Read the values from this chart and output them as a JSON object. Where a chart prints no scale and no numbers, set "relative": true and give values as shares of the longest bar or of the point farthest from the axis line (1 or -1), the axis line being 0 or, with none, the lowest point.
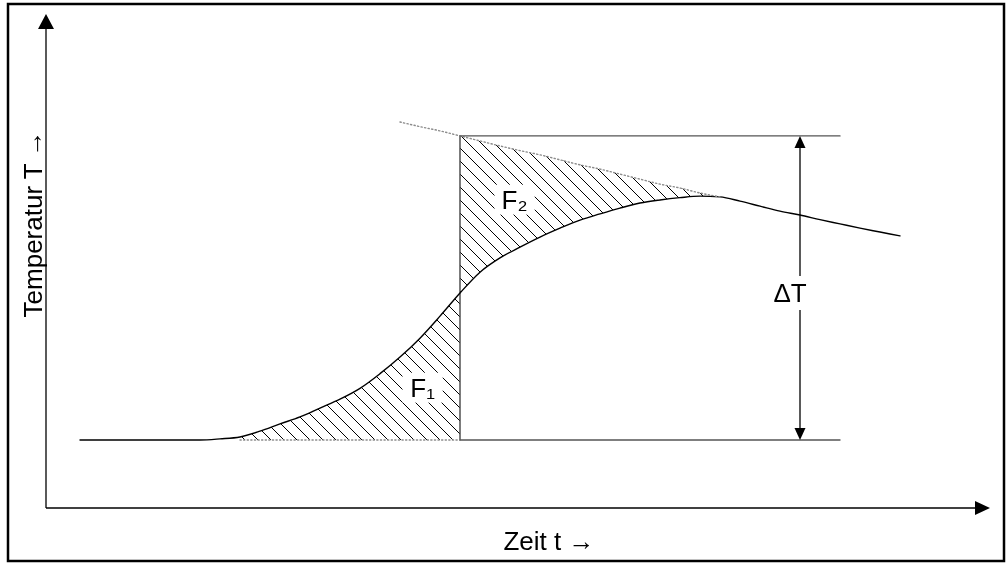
{
  "chart_data": {
    "type": "line",
    "relative": true,
    "xlabel": "Zeit t →",
    "ylabel": "Temperatur T →",
    "annotations": [
      "F₁",
      "F₂",
      "ΔT"
    ],
    "categories": [
      null,
      null,
      null,
      null,
      null,
      null,
      null,
      null,
      null,
      null,
      null,
      null,
      null,
      null,
      null,
      null,
      null,
      null,
      null,
      null,
      null,
      null,
      null,
      null,
      null,
      null,
      null,
      null,
      null,
      null,
      null,
      null,
      null,
      null,
      null,
      null,
      null,
      null,
      null,
      null,
      null,
      null
    ],
    "series": [
      {
        "color": "#000000",
        "line_style": "solid",
        "values": [
          0.176,
          0.176,
          0.176,
          0.176,
          0.176,
          0.176,
          0.176,
          0.179,
          0.184,
          0.199,
          0.218,
          0.236,
          0.259,
          0.282,
          0.31,
          0.348,
          0.391,
          0.44,
          0.497,
          0.557,
          0.611,
          0.648,
          0.676,
          0.702,
          0.725,
          0.746,
          0.762,
          0.777,
          0.79,
          0.798,
          0.804,
          0.808,
          0.806,
          0.795,
          0.782,
          0.769,
          0.759,
          0.747,
          0.736,
          0.725,
          0.715,
          0.705
        ]
      },
      {
        "color": "#8c8c8c",
        "line_style": "dotted",
        "values": [
          null,
          null,
          null,
          null,
          null,
          null,
          null,
          null,
          0.176,
          0.176,
          0.176,
          0.176,
          0.176,
          0.176,
          0.176,
          0.176,
          0.176,
          0.176,
          0.176,
          0.176,
          null,
          null,
          null,
          null,
          null,
          null,
          null,
          null,
          null,
          null,
          null,
          null,
          null,
          null,
          null,
          null,
          null,
          null,
          null,
          null,
          null,
          null
        ],
        "lower": [
          null,
          null,
          null,
          null,
          null,
          null,
          null,
          null,
          0.176,
          0.176,
          0.176,
          0.176,
          0.176,
          0.176,
          0.176,
          0.176,
          0.176,
          0.176,
          0.176,
          0.176,
          null,
          null,
          null,
          null,
          null,
          null,
          null,
          null,
          null,
          null,
          null,
          null,
          null,
          null,
          null,
          null,
          null,
          null,
          null,
          null,
          null,
          null
        ],
        "upper": [
          null,
          null,
          null,
          null,
          null,
          null,
          null,
          null,
          0.184,
          0.199,
          0.218,
          0.236,
          0.259,
          0.282,
          0.31,
          0.348,
          0.391,
          0.44,
          0.497,
          0.557,
          null,
          null,
          null,
          null,
          null,
          null,
          null,
          null,
          null,
          null,
          null,
          null,
          null,
          null,
          null,
          null,
          null,
          null,
          null,
          null,
          null,
          null
        ]
      },
      {
        "color": "#8c8c8c",
        "line_style": "dotted",
        "values": [
          null,
          null,
          null,
          null,
          null,
          null,
          null,
          null,
          null,
          null,
          null,
          null,
          null,
          null,
          null,
          null,
          1.0,
          0.988,
          0.977,
          0.964,
          0.951,
          0.938,
          0.926,
          0.915,
          0.902,
          0.889,
          0.878,
          0.865,
          0.852,
          0.839,
          0.829,
          0.816,
          0.806,
          null,
          null,
          null,
          null,
          null,
          null,
          null,
          null,
          null
        ],
        "lower": [
          null,
          null,
          null,
          null,
          null,
          null,
          null,
          null,
          null,
          null,
          null,
          null,
          null,
          null,
          null,
          null,
          null,
          null,
          null,
          0.557,
          0.611,
          0.648,
          0.676,
          0.702,
          0.725,
          0.746,
          0.762,
          0.777,
          0.79,
          0.798,
          0.804,
          0.808,
          0.806,
          null,
          null,
          null,
          null,
          null,
          null,
          null,
          null,
          null
        ],
        "upper": [
          null,
          null,
          null,
          null,
          null,
          null,
          null,
          null,
          null,
          null,
          null,
          null,
          null,
          null,
          null,
          null,
          null,
          null,
          null,
          0.964,
          0.951,
          0.938,
          0.926,
          0.915,
          0.902,
          0.889,
          0.878,
          0.865,
          0.852,
          0.839,
          0.829,
          0.816,
          0.806,
          null,
          null,
          null,
          null,
          null,
          null,
          null,
          null,
          null
        ]
      },
      {
        "color": "#555555",
        "line_style": "solid",
        "values": [
          null,
          null,
          null,
          null,
          null,
          null,
          null,
          null,
          null,
          null,
          null,
          null,
          null,
          null,
          null,
          null,
          null,
          null,
          null,
          0.964,
          0.964,
          0.964,
          0.964,
          0.964,
          0.964,
          0.964,
          0.964,
          0.964,
          0.964,
          0.964,
          0.964,
          0.964,
          0.964,
          0.964,
          0.964,
          0.964,
          0.964,
          0.964,
          0.964,
          null,
          null,
          null
        ]
      },
      {
        "color": "#555555",
        "line_style": "solid",
        "values": [
          null,
          null,
          null,
          null,
          null,
          null,
          null,
          null,
          null,
          null,
          null,
          null,
          null,
          null,
          null,
          null,
          null,
          null,
          null,
          0.176,
          0.176,
          0.176,
          0.176,
          0.176,
          0.176,
          0.176,
          0.176,
          0.176,
          0.176,
          0.176,
          0.176,
          0.176,
          0.176,
          0.176,
          0.176,
          0.176,
          0.176,
          0.176,
          0.176,
          null,
          null,
          null
        ]
      }
    ]
  }
}
